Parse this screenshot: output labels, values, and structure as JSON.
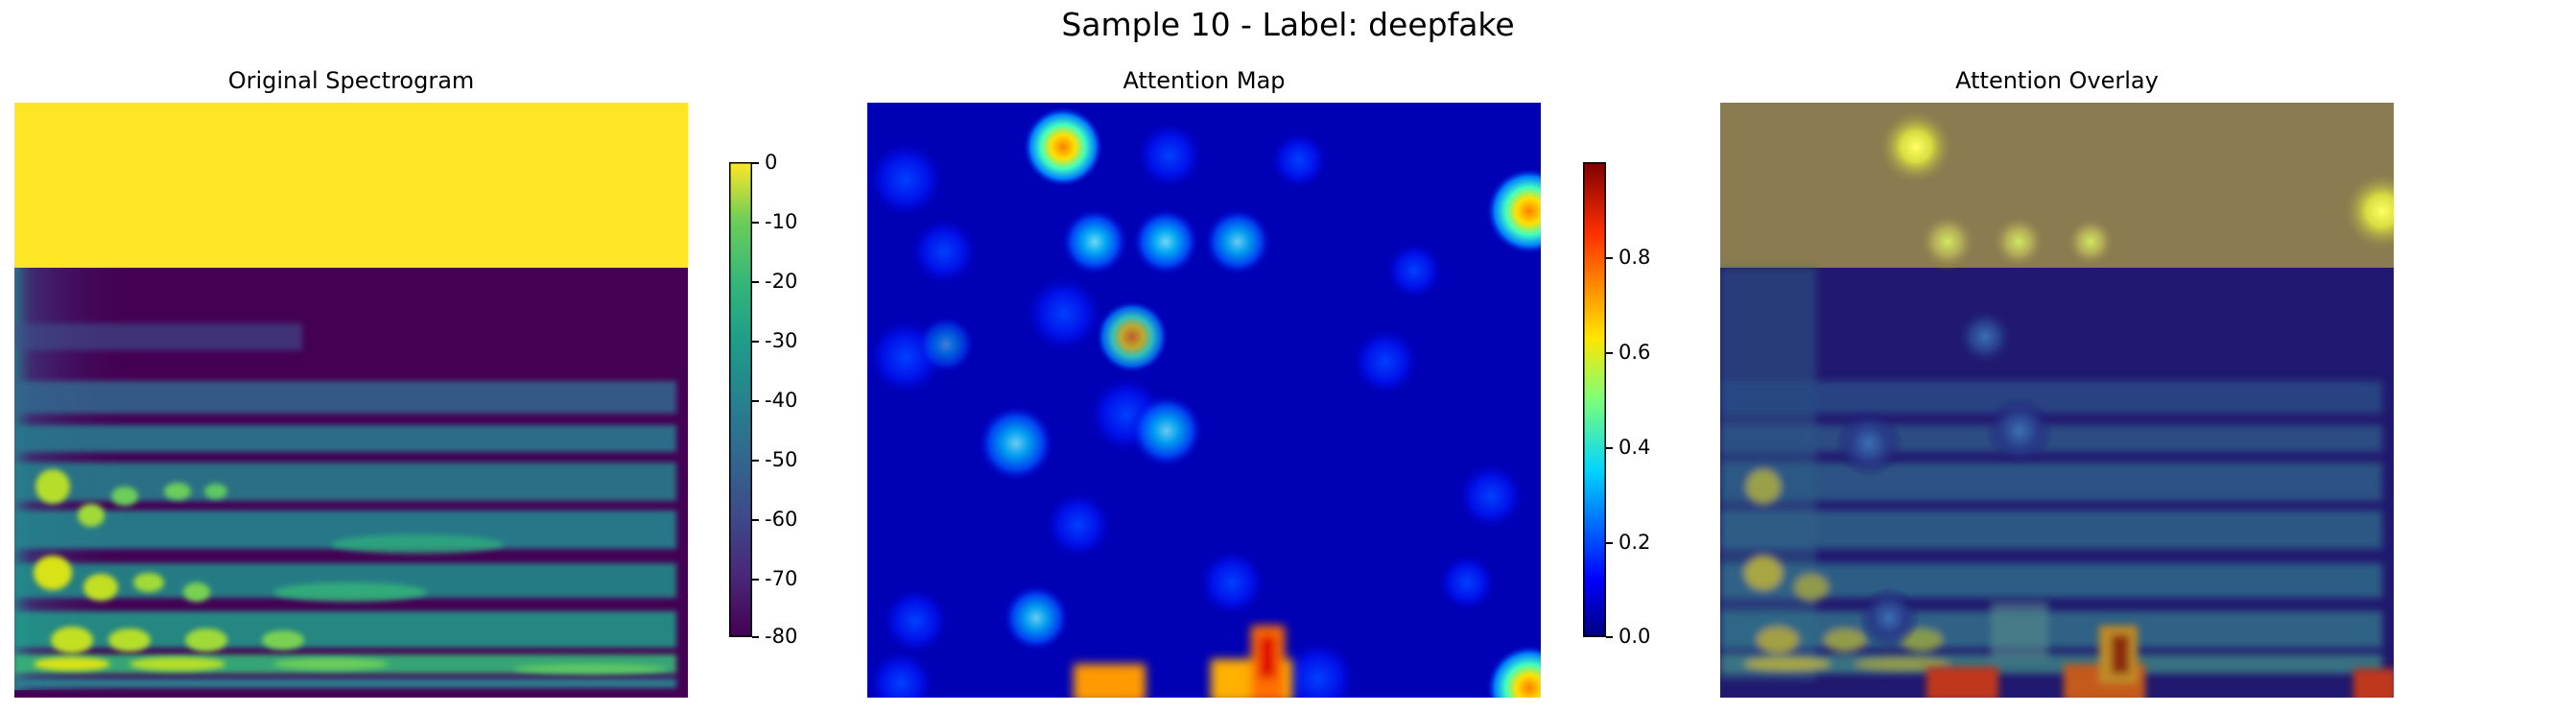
{
  "figure": {
    "suptitle": "Sample 10 - Label: deepfake"
  },
  "chart_data": [
    {
      "type": "heatmap",
      "title": "Original Spectrogram",
      "description_note": "",
      "colormap": "viridis",
      "colorbar": {
        "min": -80,
        "max": 0,
        "ticks": [
          "0",
          "-10",
          "-20",
          "-30",
          "-40",
          "-50",
          "-60",
          "-70",
          "-80"
        ]
      },
      "axes_visible": false
    },
    {
      "type": "heatmap",
      "title": "Attention Map",
      "colormap": "jet",
      "colorbar": {
        "min": 0.0,
        "max": 1.0,
        "ticks": [
          "0.8",
          "0.6",
          "0.4",
          "0.2",
          "0.0"
        ]
      },
      "axes_visible": false
    },
    {
      "type": "heatmap",
      "title": "Attention Overlay",
      "colormap": "viridis + jet overlay",
      "axes_visible": false
    }
  ]
}
